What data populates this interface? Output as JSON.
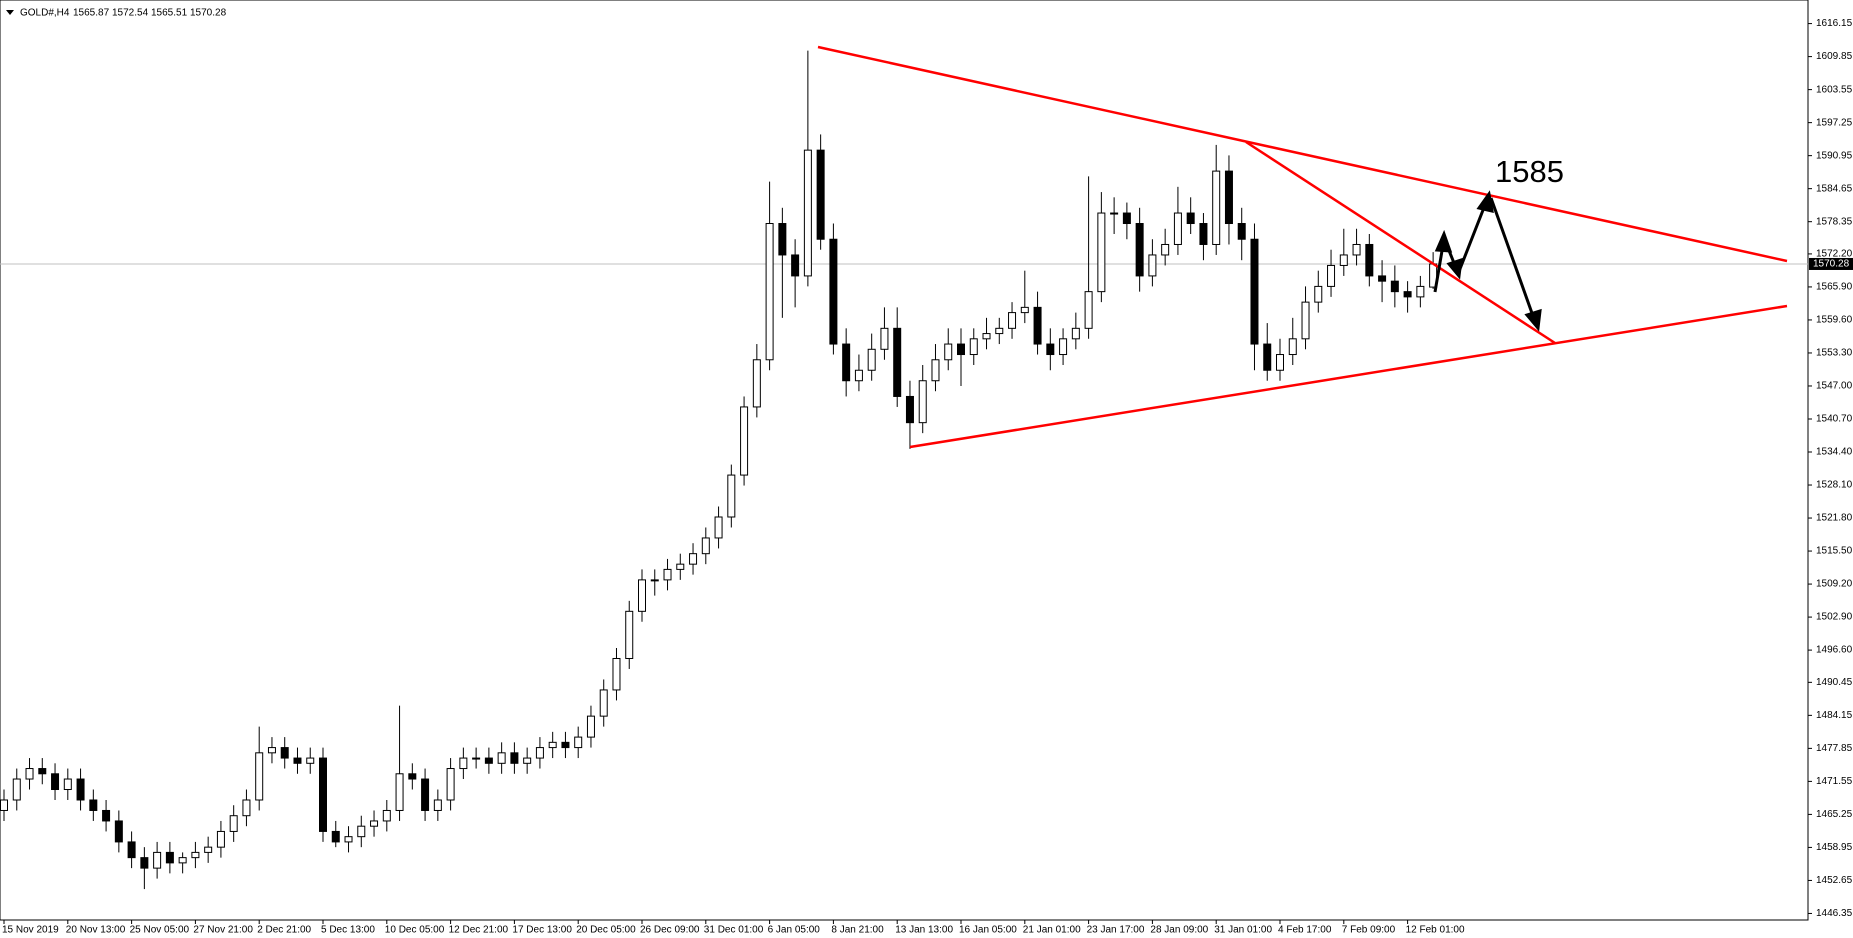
{
  "chart_data": {
    "type": "candlestick",
    "title": "GOLD#,H4",
    "annotation": "1585",
    "x_labels": [
      "15 Nov 2019",
      "20 Nov 13:00",
      "25 Nov 05:00",
      "27 Nov 21:00",
      "2 Dec 21:00",
      "5 Dec 13:00",
      "10 Dec 05:00",
      "12 Dec 21:00",
      "17 Dec 13:00",
      "20 Dec 05:00",
      "26 Dec 09:00",
      "31 Dec 01:00",
      "6 Jan 05:00",
      "8 Jan 21:00",
      "13 Jan 13:00",
      "16 Jan 05:00",
      "21 Jan 01:00",
      "23 Jan 17:00",
      "28 Jan 09:00",
      "31 Jan 01:00",
      "4 Feb 17:00",
      "7 Feb 09:00",
      "12 Feb 01:00"
    ],
    "open": [
      1466,
      1468,
      1472,
      1474,
      1473,
      1470,
      1472,
      1468,
      1466,
      1464,
      1460,
      1457,
      1455,
      1458,
      1456,
      1457,
      1458,
      1459,
      1462,
      1465,
      1468,
      1477,
      1478,
      1476,
      1475,
      1476,
      1462,
      1460,
      1461,
      1463,
      1464,
      1466,
      1473,
      1472,
      1466,
      1468,
      1474,
      1476,
      1476,
      1475,
      1477,
      1475,
      1476,
      1478,
      1479,
      1478,
      1480,
      1484,
      1489,
      1495,
      1504,
      1510,
      1510,
      1512,
      1513,
      1515,
      1518,
      1522,
      1530,
      1543,
      1552,
      1578,
      1572,
      1568,
      1592,
      1575,
      1555,
      1548,
      1550,
      1554,
      1558,
      1545,
      1540,
      1548,
      1552,
      1555,
      1553,
      1556,
      1557,
      1558,
      1561,
      1562,
      1555,
      1553,
      1556,
      1558,
      1565,
      1580,
      1580,
      1578,
      1568,
      1572,
      1574,
      1580,
      1578,
      1574,
      1588,
      1578,
      1575,
      1555,
      1550,
      1553,
      1556,
      1563,
      1566,
      1570,
      1572,
      1574,
      1568,
      1567,
      1565,
      1564,
      1565.87
    ],
    "high": [
      1470,
      1474,
      1476,
      1476,
      1475,
      1474,
      1474,
      1470,
      1468,
      1466,
      1462,
      1459,
      1460,
      1460,
      1458,
      1460,
      1461,
      1464,
      1467,
      1470,
      1482,
      1480,
      1480,
      1478,
      1478,
      1478,
      1464,
      1463,
      1465,
      1466,
      1468,
      1486,
      1475,
      1474,
      1470,
      1476,
      1478,
      1478,
      1478,
      1479,
      1479,
      1478,
      1480,
      1481,
      1481,
      1482,
      1486,
      1491,
      1497,
      1506,
      1512,
      1512,
      1514,
      1515,
      1517,
      1520,
      1524,
      1532,
      1545,
      1555,
      1586,
      1581,
      1575,
      1611,
      1595,
      1578,
      1558,
      1553,
      1557,
      1562,
      1562,
      1548,
      1551,
      1555,
      1558,
      1558,
      1558,
      1560,
      1560,
      1563,
      1569,
      1565,
      1558,
      1558,
      1561,
      1587,
      1584,
      1583,
      1582,
      1581,
      1575,
      1577,
      1585,
      1583,
      1580,
      1593,
      1591,
      1581,
      1578,
      1559,
      1556,
      1560,
      1566,
      1569,
      1573,
      1577,
      1577,
      1576,
      1571,
      1570,
      1567,
      1568,
      1572.54
    ],
    "low": [
      1464,
      1466,
      1470,
      1471,
      1468,
      1468,
      1466,
      1464,
      1462,
      1458,
      1455,
      1451,
      1453,
      1454,
      1454,
      1455,
      1456,
      1457,
      1460,
      1463,
      1466,
      1475,
      1474,
      1473,
      1473,
      1460,
      1459,
      1458,
      1459,
      1461,
      1462,
      1464,
      1470,
      1464,
      1464,
      1466,
      1472,
      1474,
      1473,
      1473,
      1473,
      1473,
      1474,
      1476,
      1476,
      1476,
      1478,
      1482,
      1487,
      1493,
      1502,
      1507,
      1508,
      1510,
      1511,
      1513,
      1516,
      1520,
      1528,
      1541,
      1550,
      1560,
      1562,
      1566,
      1573,
      1553,
      1545,
      1546,
      1548,
      1552,
      1543,
      1535,
      1538,
      1546,
      1550,
      1547,
      1551,
      1554,
      1555,
      1556,
      1559,
      1553,
      1550,
      1551,
      1554,
      1556,
      1563,
      1576,
      1575,
      1565,
      1566,
      1570,
      1572,
      1576,
      1571,
      1572,
      1574,
      1571,
      1550,
      1548,
      1548,
      1551,
      1554,
      1561,
      1564,
      1568,
      1570,
      1566,
      1563,
      1562,
      1561,
      1562,
      1565.51
    ],
    "close": [
      1468,
      1472,
      1474,
      1473,
      1470,
      1472,
      1468,
      1466,
      1464,
      1460,
      1457,
      1455,
      1458,
      1456,
      1457,
      1458,
      1459,
      1462,
      1465,
      1468,
      1477,
      1478,
      1476,
      1475,
      1476,
      1462,
      1460,
      1461,
      1463,
      1464,
      1466,
      1473,
      1472,
      1466,
      1468,
      1474,
      1476,
      1476,
      1475,
      1477,
      1475,
      1476,
      1478,
      1479,
      1478,
      1480,
      1484,
      1489,
      1495,
      1504,
      1510,
      1510,
      1512,
      1513,
      1515,
      1518,
      1522,
      1530,
      1543,
      1552,
      1578,
      1572,
      1568,
      1592,
      1575,
      1555,
      1548,
      1550,
      1554,
      1558,
      1545,
      1540,
      1548,
      1552,
      1555,
      1553,
      1556,
      1557,
      1558,
      1561,
      1562,
      1555,
      1553,
      1556,
      1558,
      1565,
      1580,
      1580,
      1578,
      1568,
      1572,
      1574,
      1580,
      1578,
      1574,
      1588,
      1578,
      1575,
      1555,
      1550,
      1553,
      1556,
      1563,
      1566,
      1570,
      1572,
      1574,
      1568,
      1567,
      1565,
      1564,
      1566,
      1570.28
    ],
    "ylim": [
      1445.1,
      1620.65
    ],
    "yticks": [
      1616.15,
      1609.85,
      1603.55,
      1597.25,
      1590.95,
      1584.65,
      1578.35,
      {
        "value": 1572.2,
        "label": "1572.20"
      },
      {
        "value": 1565.9,
        "label": "1565.90"
      },
      {
        "value": 1559.6,
        "label": "1559.60"
      },
      {
        "value": 1553.3,
        "label": "1553.30"
      },
      {
        "value": 1547,
        "label": "1547.00"
      },
      {
        "value": 1540.7,
        "label": "1540.70"
      },
      {
        "value": 1534.4,
        "label": "1534.40"
      },
      {
        "value": 1528.1,
        "label": "1528.10"
      },
      {
        "value": 1521.8,
        "label": "1521.80"
      },
      {
        "value": 1515.5,
        "label": "1515.50"
      },
      {
        "value": 1509.2,
        "label": "1509.20"
      },
      {
        "value": 1502.9,
        "label": "1502.90"
      },
      {
        "value": 1496.6,
        "label": "1496.60"
      },
      1490.45,
      1484.15,
      1477.85,
      1471.55,
      1465.25,
      1458.95,
      1452.65,
      1446.35
    ]
  }
}
